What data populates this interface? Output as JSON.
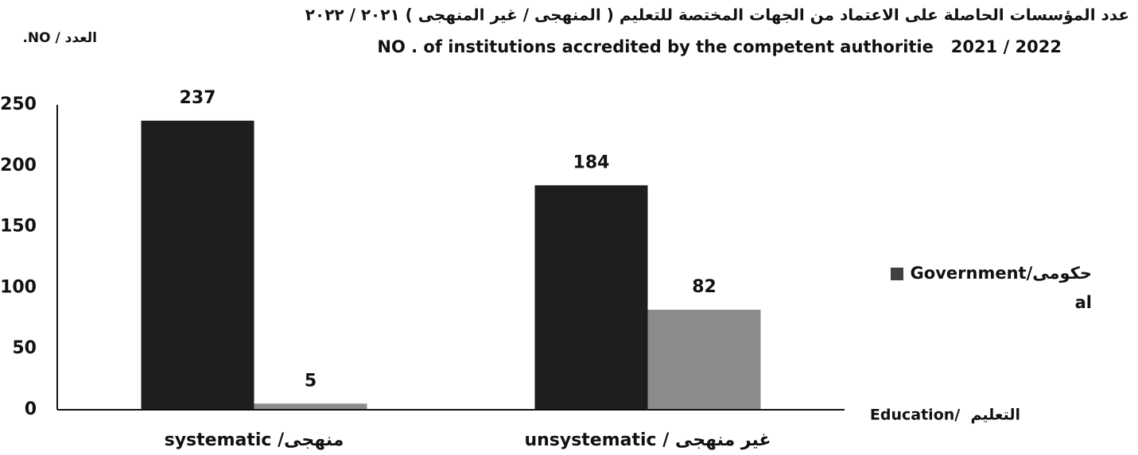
{
  "chart_data": {
    "type": "bar",
    "title": "عدد المؤسسات الحاصلة على الاعتماد من الجهات المختصة للتعليم ( المنهجى / غير المنهجى ) ٢٠٢١ / ٢٠٢٢",
    "subtitle": "NO . of institutions accredited by the competent authoritie   2021 / 2022",
    "y_label": "العدد / NO.",
    "x_label": "التعليم  /Education",
    "categories": [
      "منهجى/ systematic",
      "غير منهجى / unsystematic"
    ],
    "series": [
      {
        "name": "حكومى/Government",
        "color": "#1e1e1e",
        "values": [
          237,
          184
        ]
      },
      {
        "color": "#8c8c8c",
        "values": [
          5,
          82
        ]
      }
    ],
    "legend_continuation": "al",
    "legend": "right",
    "ylim": [
      0,
      250
    ],
    "yticks": [
      0,
      50,
      100,
      150,
      200,
      250
    ],
    "grid": false
  }
}
